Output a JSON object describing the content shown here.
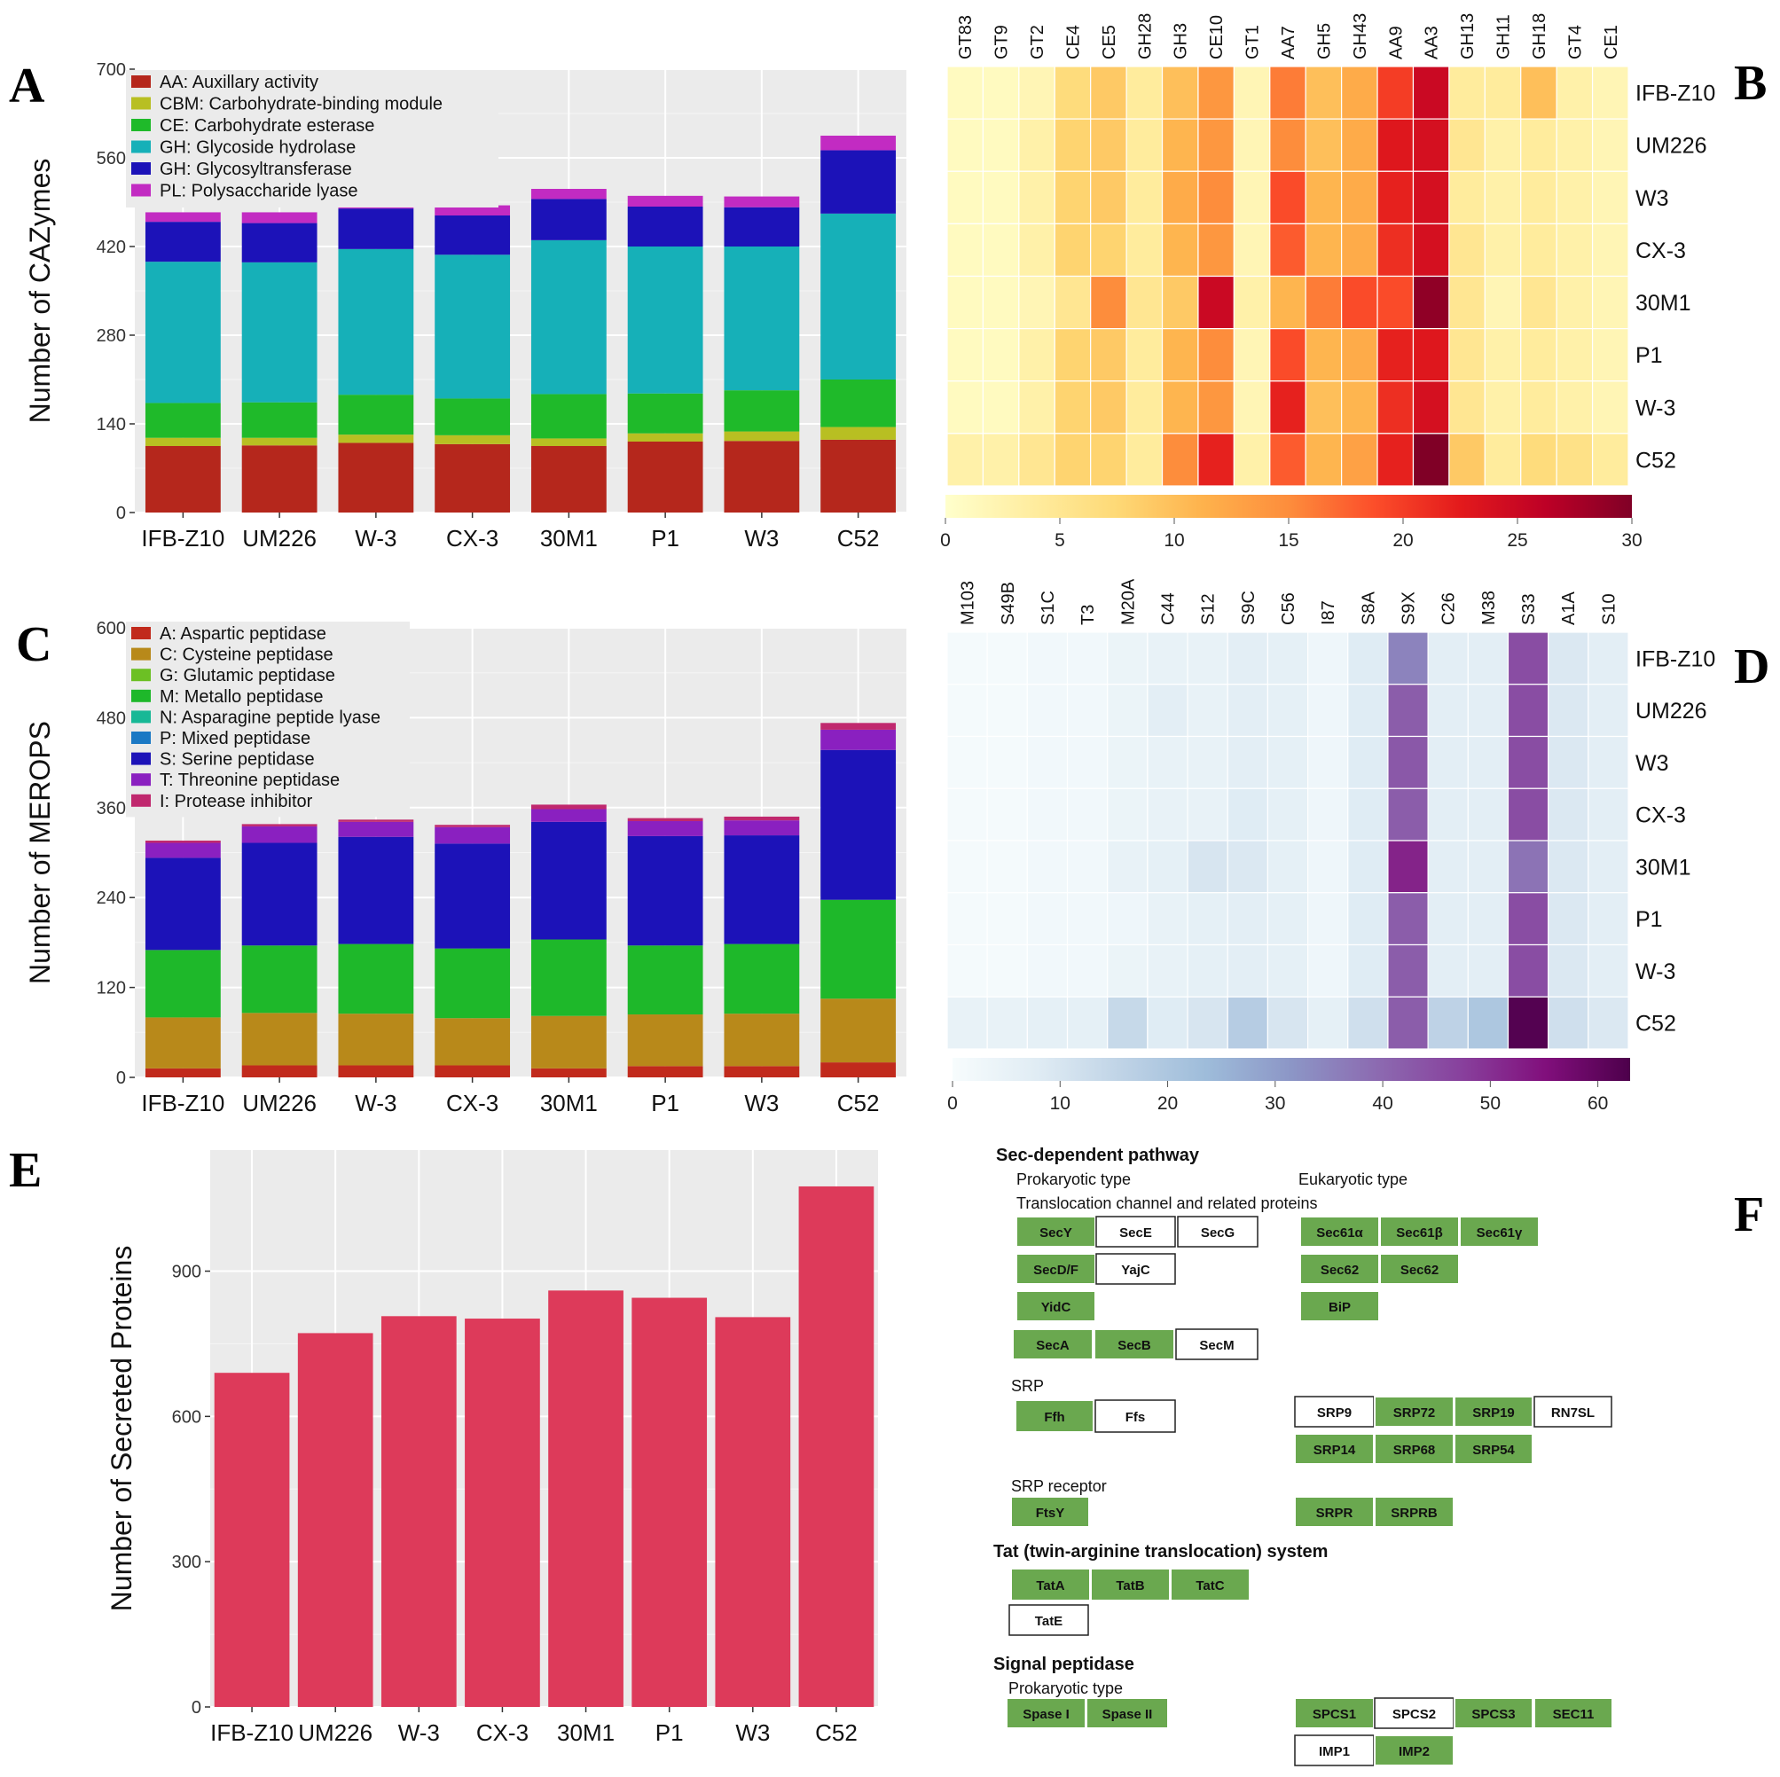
{
  "panels": {
    "A": "A",
    "B": "B",
    "C": "C",
    "D": "D",
    "E": "E",
    "F": "F"
  },
  "colors": {
    "panel_bg": "#ebebeb",
    "grid": "#ffffff",
    "bar_E": "#dd3a5a",
    "green_box": "#6aa84f"
  },
  "chart_data": [
    {
      "id": "A",
      "type": "bar",
      "stacked": true,
      "title": "",
      "xlabel": "",
      "ylabel": "Number of CAZymes",
      "ylim": [
        0,
        700
      ],
      "yticks": [
        0,
        140,
        280,
        420,
        560,
        700
      ],
      "legend_position": "top-left",
      "categories": [
        "IFB-Z10",
        "UM226",
        "W-3",
        "CX-3",
        "30M1",
        "P1",
        "W3",
        "C52"
      ],
      "series": [
        {
          "name": "AA: Auxillary activity",
          "color": "#b5271c",
          "values": [
            105,
            106,
            110,
            108,
            105,
            112,
            113,
            115
          ]
        },
        {
          "name": "CBM: Carbohydrate-binding module",
          "color": "#b8bf22",
          "values": [
            13,
            12,
            13,
            14,
            12,
            13,
            15,
            20
          ]
        },
        {
          "name": "CE: Carbohydrate esterase",
          "color": "#1fba2a",
          "values": [
            55,
            56,
            63,
            58,
            70,
            63,
            65,
            75
          ]
        },
        {
          "name": "GH: Glycoside hydrolase",
          "color": "#16b0b8",
          "values": [
            223,
            221,
            230,
            227,
            243,
            232,
            227,
            262
          ]
        },
        {
          "name": "GH: Glycosyltransferase",
          "color": "#1c12b8",
          "values": [
            63,
            62,
            64,
            62,
            65,
            63,
            62,
            100
          ]
        },
        {
          "name": "PL: Polysaccharide lyase",
          "color": "#c22bc2",
          "values": [
            15,
            17,
            4,
            16,
            16,
            17,
            17,
            23
          ]
        }
      ]
    },
    {
      "id": "B",
      "type": "heatmap",
      "columns": [
        "GT83",
        "GT9",
        "GT2",
        "CE4",
        "CE5",
        "GH28",
        "GH3",
        "CE10",
        "GT1",
        "AA7",
        "GH5",
        "GH43",
        "AA9",
        "AA3",
        "GH13",
        "GH11",
        "GH18",
        "GT4",
        "CE1"
      ],
      "rows": [
        "IFB-Z10",
        "UM226",
        "W3",
        "CX-3",
        "30M1",
        "P1",
        "W-3",
        "C52"
      ],
      "values": [
        [
          1,
          1,
          2,
          7,
          9,
          4,
          10,
          14,
          2,
          16,
          10,
          12,
          20,
          25,
          4,
          4,
          10,
          3,
          2
        ],
        [
          1,
          1,
          3,
          8,
          9,
          4,
          11,
          14,
          2,
          15,
          10,
          12,
          23,
          24,
          5,
          3,
          4,
          3,
          2
        ],
        [
          1,
          1,
          3,
          8,
          9,
          4,
          12,
          15,
          2,
          19,
          11,
          12,
          22,
          24,
          4,
          3,
          4,
          3,
          2
        ],
        [
          1,
          1,
          3,
          8,
          8,
          4,
          11,
          14,
          2,
          18,
          11,
          12,
          21,
          24,
          5,
          3,
          4,
          3,
          2
        ],
        [
          1,
          1,
          2,
          5,
          15,
          5,
          9,
          25,
          3,
          11,
          16,
          19,
          19,
          29,
          5,
          2,
          5,
          3,
          2
        ],
        [
          1,
          1,
          3,
          8,
          9,
          4,
          11,
          15,
          2,
          19,
          11,
          12,
          22,
          23,
          5,
          3,
          4,
          3,
          2
        ],
        [
          1,
          1,
          3,
          8,
          9,
          4,
          11,
          14,
          2,
          22,
          10,
          11,
          21,
          24,
          5,
          3,
          4,
          3,
          2
        ],
        [
          3,
          3,
          5,
          8,
          8,
          4,
          15,
          22,
          3,
          18,
          11,
          13,
          22,
          30,
          9,
          4,
          7,
          6,
          4
        ]
      ],
      "colorbar": {
        "min": 0,
        "max": 30,
        "ticks": [
          0,
          5,
          10,
          15,
          20,
          25,
          30
        ]
      }
    },
    {
      "id": "C",
      "type": "bar",
      "stacked": true,
      "title": "",
      "xlabel": "",
      "ylabel": "Number of MEROPS",
      "ylim": [
        0,
        600
      ],
      "yticks": [
        0,
        120,
        240,
        360,
        480,
        600
      ],
      "legend_position": "top-left",
      "categories": [
        "IFB-Z10",
        "UM226",
        "W-3",
        "CX-3",
        "30M1",
        "P1",
        "W3",
        "C52"
      ],
      "series": [
        {
          "name": "A: Aspartic peptidase",
          "color": "#c12a1c",
          "values": [
            12,
            16,
            16,
            16,
            12,
            15,
            15,
            20
          ]
        },
        {
          "name": "C: Cysteine peptidase",
          "color": "#b8891a",
          "values": [
            68,
            70,
            69,
            63,
            70,
            69,
            70,
            85
          ]
        },
        {
          "name": "G: Glutamic peptidase",
          "color": "#6cc024",
          "values": [
            0,
            0,
            0,
            0,
            0,
            0,
            0,
            0
          ]
        },
        {
          "name": "M: Metallo peptidase",
          "color": "#1eb82a",
          "values": [
            90,
            90,
            93,
            93,
            102,
            92,
            93,
            132
          ]
        },
        {
          "name": "N: Asparagine peptide lyase",
          "color": "#17b896",
          "values": [
            0,
            0,
            0,
            0,
            0,
            0,
            0,
            0
          ]
        },
        {
          "name": "P: Mixed peptidase",
          "color": "#1a78c4",
          "values": [
            0,
            0,
            0,
            0,
            0,
            0,
            0,
            0
          ]
        },
        {
          "name": "S: Serine peptidase",
          "color": "#1c12b8",
          "values": [
            123,
            137,
            143,
            140,
            157,
            146,
            145,
            200
          ]
        },
        {
          "name": "T: Threonine peptidase",
          "color": "#8a20c0",
          "values": [
            20,
            22,
            20,
            22,
            17,
            20,
            20,
            27
          ]
        },
        {
          "name": "I: Protease inhibitor",
          "color": "#c0286e",
          "values": [
            3,
            3,
            3,
            3,
            6,
            4,
            5,
            9
          ]
        }
      ]
    },
    {
      "id": "D",
      "type": "heatmap",
      "columns": [
        "M103",
        "S49B",
        "S1C",
        "T3",
        "M20A",
        "C44",
        "S12",
        "S9C",
        "C56",
        "I87",
        "S8A",
        "S9X",
        "C26",
        "M38",
        "S33",
        "A1A",
        "S10"
      ],
      "rows": [
        "IFB-Z10",
        "UM226",
        "W3",
        "CX-3",
        "30M1",
        "P1",
        "W-3",
        "C52"
      ],
      "values": [
        [
          1,
          1,
          2,
          2,
          4,
          5,
          5,
          7,
          6,
          3,
          8,
          35,
          7,
          7,
          45,
          9,
          7
        ],
        [
          1,
          1,
          2,
          2,
          4,
          7,
          5,
          7,
          6,
          3,
          8,
          42,
          7,
          7,
          45,
          9,
          7
        ],
        [
          1,
          1,
          2,
          2,
          4,
          5,
          5,
          7,
          6,
          3,
          8,
          43,
          7,
          7,
          45,
          9,
          7
        ],
        [
          1,
          1,
          2,
          2,
          4,
          5,
          5,
          8,
          6,
          3,
          8,
          42,
          7,
          7,
          45,
          9,
          7
        ],
        [
          1,
          1,
          2,
          2,
          5,
          6,
          10,
          9,
          6,
          3,
          8,
          52,
          7,
          7,
          38,
          9,
          7
        ],
        [
          1,
          1,
          2,
          2,
          3,
          5,
          6,
          7,
          6,
          3,
          8,
          42,
          7,
          7,
          45,
          9,
          7
        ],
        [
          1,
          1,
          2,
          2,
          4,
          5,
          6,
          7,
          6,
          3,
          8,
          42,
          7,
          7,
          45,
          9,
          7
        ],
        [
          5,
          5,
          6,
          6,
          14,
          8,
          10,
          18,
          10,
          6,
          12,
          42,
          16,
          20,
          62,
          12,
          9
        ]
      ],
      "colorbar": {
        "min": 0,
        "max": 63,
        "ticks": [
          0,
          10,
          20,
          30,
          40,
          50,
          60
        ]
      }
    },
    {
      "id": "E",
      "type": "bar",
      "title": "",
      "xlabel": "",
      "ylabel": "Number of Secreted Proteins",
      "ylim": [
        0,
        1150
      ],
      "yticks": [
        0,
        300,
        600,
        900
      ],
      "categories": [
        "IFB-Z10",
        "UM226",
        "W-3",
        "CX-3",
        "30M1",
        "P1",
        "W3",
        "C52"
      ],
      "values": [
        690,
        772,
        807,
        802,
        860,
        845,
        805,
        1075
      ]
    }
  ],
  "pathway": {
    "sec_title": "Sec-dependent pathway",
    "prokaryotic_type": "Prokaryotic type",
    "eukaryotic_type": "Eukaryotic type",
    "translocation_label": "Translocation channel and related proteins",
    "srp_label": "SRP",
    "srp_receptor_label": "SRP receptor",
    "tat_title": "Tat (twin-arginine translocation) system",
    "signal_title": "Signal peptidase",
    "signal_prokaryotic_type": "Prokaryotic type",
    "boxes": [
      {
        "name": "SecY",
        "filled": true
      },
      {
        "name": "SecE",
        "filled": false
      },
      {
        "name": "SecG",
        "filled": false
      },
      {
        "name": "SecD/F",
        "filled": true
      },
      {
        "name": "YajC",
        "filled": false
      },
      {
        "name": "YidC",
        "filled": true
      },
      {
        "name": "SecA",
        "filled": true
      },
      {
        "name": "SecB",
        "filled": true
      },
      {
        "name": "SecM",
        "filled": false
      },
      {
        "name": "Sec61α",
        "filled": true
      },
      {
        "name": "Sec61β",
        "filled": true
      },
      {
        "name": "Sec61γ",
        "filled": true
      },
      {
        "name": "Sec62",
        "filled": true
      },
      {
        "name": "Sec62",
        "filled": true
      },
      {
        "name": "BiP",
        "filled": true
      },
      {
        "name": "Ffh",
        "filled": true
      },
      {
        "name": "Ffs",
        "filled": false
      },
      {
        "name": "SRP9",
        "filled": false
      },
      {
        "name": "SRP72",
        "filled": true
      },
      {
        "name": "SRP19",
        "filled": true
      },
      {
        "name": "RN7SL",
        "filled": false
      },
      {
        "name": "SRP14",
        "filled": true
      },
      {
        "name": "SRP68",
        "filled": true
      },
      {
        "name": "SRP54",
        "filled": true
      },
      {
        "name": "FtsY",
        "filled": true
      },
      {
        "name": "SRPR",
        "filled": true
      },
      {
        "name": "SRPRB",
        "filled": true
      },
      {
        "name": "TatA",
        "filled": true
      },
      {
        "name": "TatB",
        "filled": true
      },
      {
        "name": "TatC",
        "filled": true
      },
      {
        "name": "TatE",
        "filled": false
      },
      {
        "name": "Spase I",
        "filled": true
      },
      {
        "name": "Spase II",
        "filled": true
      },
      {
        "name": "SPCS1",
        "filled": true
      },
      {
        "name": "SPCS2",
        "filled": false
      },
      {
        "name": "SPCS3",
        "filled": true
      },
      {
        "name": "SEC11",
        "filled": true
      },
      {
        "name": "IMP1",
        "filled": false
      },
      {
        "name": "IMP2",
        "filled": true
      }
    ]
  }
}
